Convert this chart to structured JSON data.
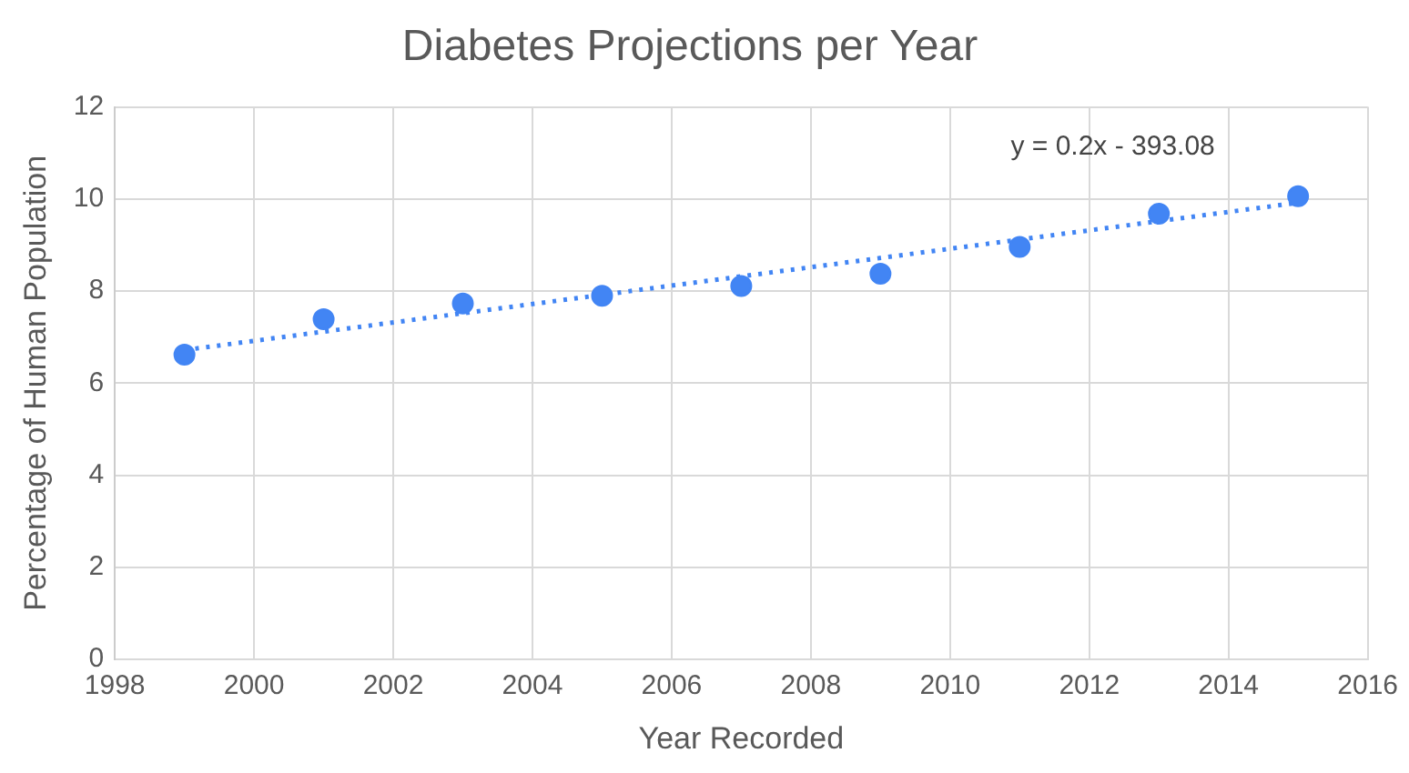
{
  "chart_data": {
    "type": "scatter",
    "title": "Diabetes Projections per Year",
    "xlabel": "Year Recorded",
    "ylabel": "Percentage of Human Population",
    "x": [
      1999,
      2001,
      2003,
      2005,
      2007,
      2009,
      2011,
      2013,
      2015
    ],
    "series": [
      {
        "color": "#4285f4",
        "values": [
          6.62,
          7.39,
          7.73,
          7.9,
          8.11,
          8.38,
          8.96,
          9.68,
          10.06
        ],
        "marker": "circle"
      },
      {
        "type": "line",
        "x": [
          1999,
          2015
        ],
        "values": [
          6.72,
          9.92
        ],
        "color": "#4285f4",
        "line_style": "dotted",
        "marker": "none"
      }
    ],
    "xlim": [
      1998,
      2016
    ],
    "xticks": [
      1998,
      2000,
      2002,
      2004,
      2006,
      2008,
      2010,
      2012,
      2014,
      2016
    ],
    "ylim": [
      0,
      12
    ],
    "yticks": [
      0,
      2,
      4,
      6,
      8,
      10,
      12
    ],
    "grid": true,
    "legend": false,
    "annotations": [
      "y = 0.2x - 393.08"
    ]
  }
}
